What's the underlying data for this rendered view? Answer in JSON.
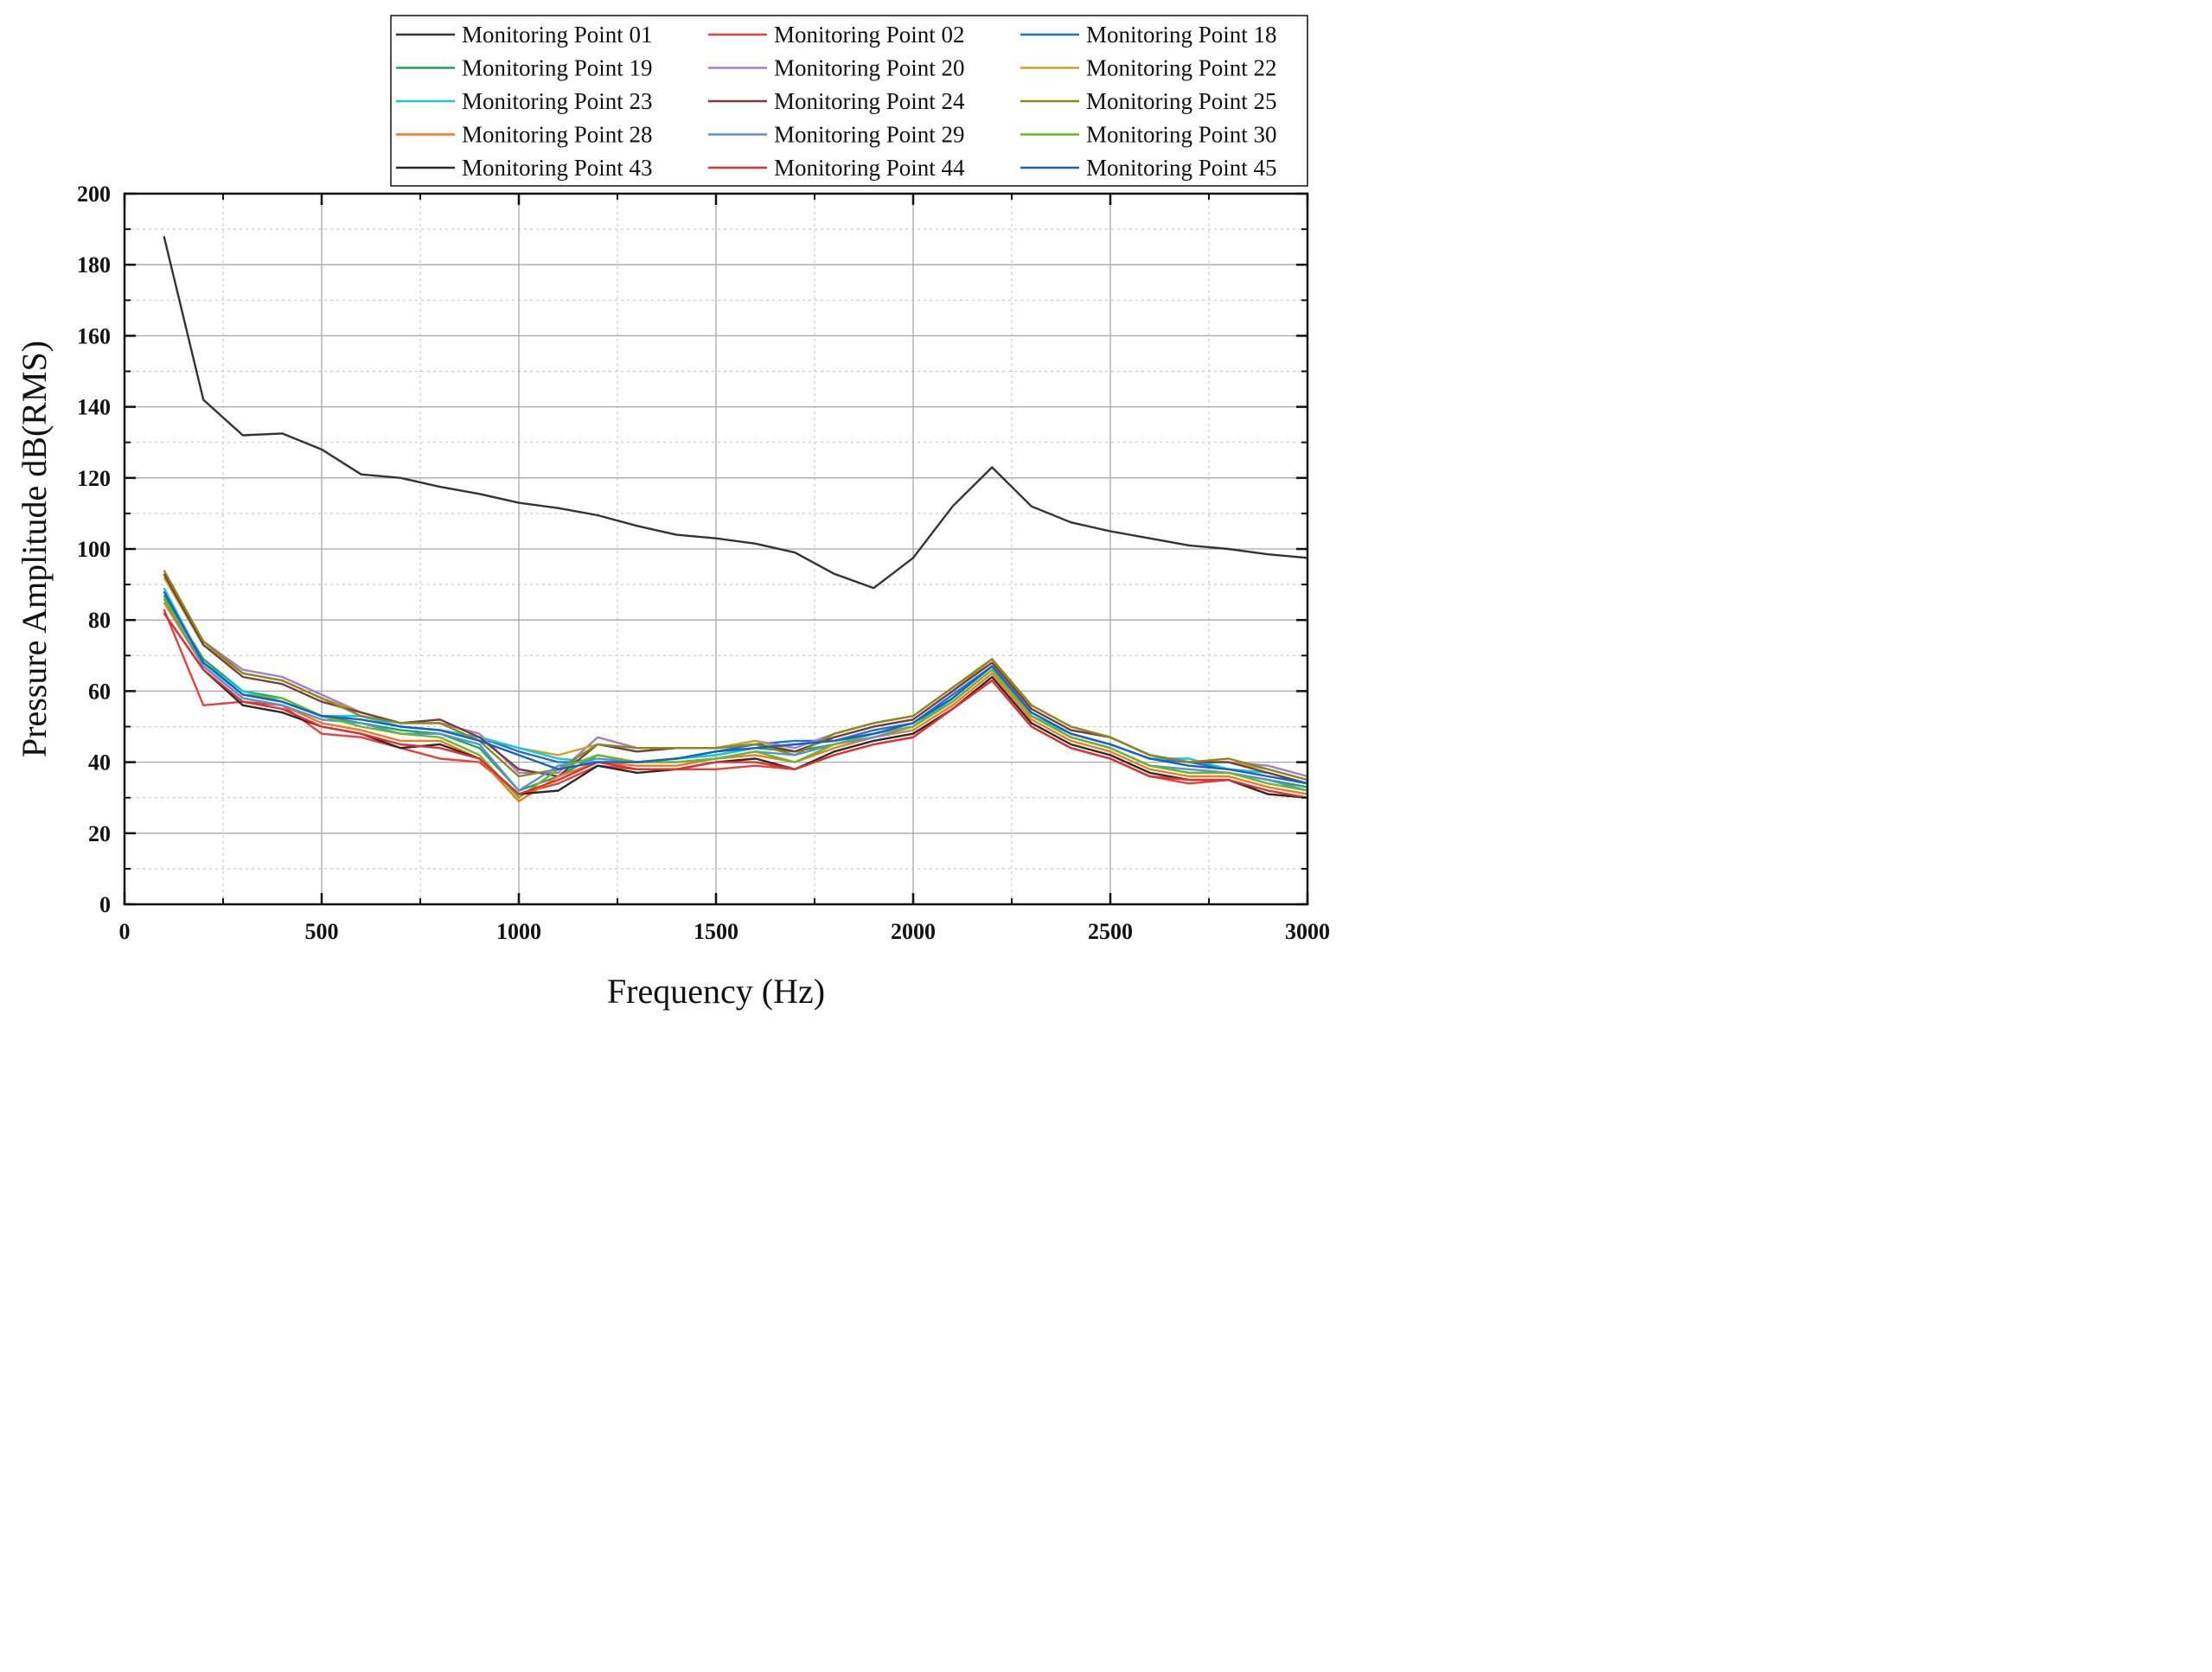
{
  "chart_data": {
    "type": "line",
    "title": "",
    "xlabel": "Frequency (Hz)",
    "ylabel": "Pressure Amplitude dB(RMS)",
    "xlim": [
      0,
      3000
    ],
    "ylim": [
      0,
      200
    ],
    "xticks": [
      0,
      500,
      1000,
      1500,
      2000,
      2500,
      3000
    ],
    "yticks": [
      0,
      20,
      40,
      60,
      80,
      100,
      120,
      140,
      160,
      180,
      200
    ],
    "grid": true,
    "legend_position": "top-right",
    "x": [
      100,
      200,
      300,
      400,
      500,
      600,
      700,
      800,
      900,
      1000,
      1100,
      1200,
      1300,
      1400,
      1500,
      1600,
      1700,
      1800,
      1900,
      2000,
      2100,
      2200,
      2300,
      2400,
      2500,
      2600,
      2700,
      2800,
      2900,
      3000
    ],
    "series": [
      {
        "name": "Monitoring Point 01",
        "color": "#333333",
        "values": [
          188,
          142,
          132,
          132.5,
          128,
          121,
          120,
          117.5,
          115.5,
          113,
          111.5,
          109.5,
          106.5,
          104,
          103,
          101.5,
          99,
          93,
          89,
          97.5,
          112,
          123,
          112,
          107.5,
          105,
          103,
          101,
          100,
          98.5,
          97.5
        ]
      },
      {
        "name": "Monitoring Point 02",
        "color": "#e8403a",
        "values": [
          83,
          56,
          57,
          56,
          48,
          47,
          44,
          41,
          40,
          31,
          34,
          39,
          38,
          38,
          38,
          39,
          38,
          42,
          45,
          47,
          55,
          63,
          50,
          44,
          41,
          36,
          34,
          35,
          31,
          30
        ]
      },
      {
        "name": "Monitoring Point 18",
        "color": "#1f6fd6",
        "values": [
          88,
          68,
          59,
          57,
          53,
          53,
          50,
          49,
          47,
          43,
          40,
          40,
          40,
          41,
          43,
          45,
          46,
          46,
          49,
          51,
          59,
          67,
          54,
          48,
          45,
          41,
          40,
          38,
          37,
          34
        ]
      },
      {
        "name": "Monitoring Point 19",
        "color": "#1aaa55",
        "values": [
          87,
          69,
          60,
          58,
          53,
          51,
          49,
          48,
          44,
          32,
          36,
          42,
          40,
          41,
          42,
          44,
          43,
          45,
          48,
          50,
          58,
          67,
          53,
          47,
          44,
          39,
          37,
          37,
          35,
          33
        ]
      },
      {
        "name": "Monitoring Point 20",
        "color": "#a07cd6",
        "values": [
          93,
          74,
          66,
          64,
          59,
          54,
          51,
          51,
          48,
          37,
          37,
          47,
          44,
          44,
          44,
          46,
          44,
          48,
          51,
          53,
          61,
          69,
          56,
          50,
          47,
          42,
          40,
          40,
          39,
          36
        ]
      },
      {
        "name": "Monitoring Point 22",
        "color": "#c9a227",
        "values": [
          92,
          73,
          65,
          63,
          58,
          54,
          51,
          52,
          47,
          44,
          42,
          45,
          43,
          44,
          44,
          46,
          43,
          47,
          50,
          52,
          60,
          69,
          55,
          49,
          47,
          42,
          40,
          40,
          38,
          35
        ]
      },
      {
        "name": "Monitoring Point 23",
        "color": "#19c6d6",
        "values": [
          89,
          68,
          60,
          57,
          53,
          53,
          50,
          49,
          47,
          44,
          41,
          40,
          40,
          41,
          42,
          44,
          45,
          46,
          48,
          50,
          58,
          67,
          53,
          48,
          45,
          41,
          41,
          38,
          37,
          34
        ]
      },
      {
        "name": "Monitoring Point 24",
        "color": "#7a3d3d",
        "values": [
          93,
          73,
          64,
          62,
          57,
          54,
          51,
          52,
          47,
          38,
          36,
          45,
          43,
          44,
          44,
          45,
          43,
          47,
          50,
          52,
          60,
          68,
          55,
          49,
          47,
          42,
          40,
          40,
          37,
          34
        ]
      },
      {
        "name": "Monitoring Point 25",
        "color": "#8a8a18",
        "values": [
          94,
          74,
          65,
          63,
          58,
          53,
          51,
          51,
          46,
          36,
          38,
          45,
          44,
          44,
          44,
          45,
          42,
          48,
          51,
          53,
          61,
          69,
          56,
          50,
          47,
          42,
          40,
          41,
          38,
          35
        ]
      },
      {
        "name": "Monitoring Point 28",
        "color": "#f07a20",
        "values": [
          85,
          67,
          58,
          56,
          51,
          49,
          46,
          46,
          41,
          29,
          36,
          40,
          39,
          39,
          41,
          42,
          40,
          44,
          47,
          49,
          56,
          65,
          52,
          46,
          43,
          38,
          36,
          36,
          33,
          31
        ]
      },
      {
        "name": "Monitoring Point 29",
        "color": "#5b8fd6",
        "values": [
          86,
          67,
          58,
          56,
          52,
          51,
          48,
          48,
          45,
          32,
          39,
          41,
          40,
          40,
          41,
          43,
          42,
          45,
          47,
          50,
          57,
          66,
          53,
          47,
          44,
          39,
          38,
          37,
          35,
          32
        ]
      },
      {
        "name": "Monitoring Point 30",
        "color": "#6ab82a",
        "values": [
          86,
          68,
          59,
          58,
          53,
          50,
          48,
          47,
          42,
          30,
          38,
          42,
          40,
          40,
          41,
          43,
          40,
          45,
          48,
          50,
          57,
          66,
          53,
          47,
          44,
          39,
          37,
          37,
          34,
          32
        ]
      },
      {
        "name": "Monitoring Point 43",
        "color": "#2b2b2b",
        "values": [
          82,
          66,
          56,
          54,
          50,
          48,
          44,
          45,
          41,
          31,
          32,
          39,
          37,
          38,
          40,
          41,
          38,
          43,
          46,
          48,
          55,
          64,
          51,
          45,
          42,
          37,
          35,
          35,
          31,
          30
        ]
      },
      {
        "name": "Monitoring Point 44",
        "color": "#e03030",
        "values": [
          82,
          66,
          57,
          55,
          50,
          48,
          45,
          44,
          41,
          31,
          35,
          40,
          38,
          38,
          40,
          40,
          38,
          42,
          45,
          47,
          55,
          63,
          50,
          44,
          41,
          36,
          35,
          35,
          32,
          30
        ]
      },
      {
        "name": "Monitoring Point 45",
        "color": "#1a5fc8",
        "values": [
          88,
          68,
          59,
          57,
          53,
          52,
          50,
          49,
          46,
          42,
          38,
          40,
          40,
          41,
          43,
          44,
          45,
          46,
          48,
          51,
          58,
          67,
          54,
          48,
          45,
          41,
          39,
          38,
          36,
          34
        ]
      }
    ]
  }
}
